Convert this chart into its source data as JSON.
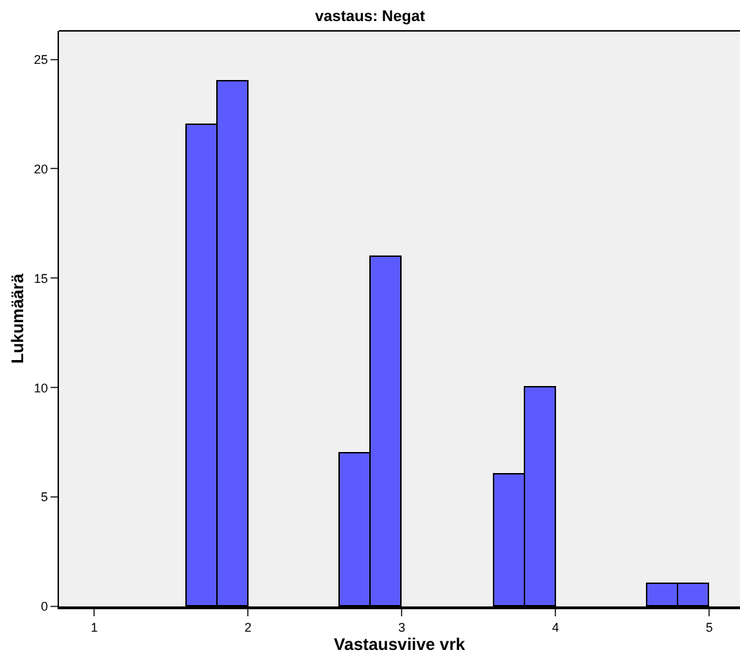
{
  "chart_data": {
    "type": "histogram",
    "title": "vastaus: Negat",
    "xlabel": "Vastausviive vrk",
    "ylabel": "Lukumäärä",
    "bins": [
      1.6,
      1.8,
      2.0,
      2.2,
      2.4,
      2.6,
      2.8,
      3.0,
      3.2,
      3.4,
      3.6,
      3.8,
      4.0,
      4.2,
      4.4,
      4.6,
      4.8,
      5.0
    ],
    "values": [
      22,
      24,
      0,
      0,
      0,
      7,
      16,
      0,
      0,
      0,
      6,
      10,
      0,
      0,
      0,
      1,
      1
    ],
    "color": "#5b5bff",
    "xlim": [
      0.77,
      5.2
    ],
    "xticks": [
      1,
      2,
      3,
      4,
      5
    ],
    "ylim": [
      0,
      26.3
    ],
    "yticks": [
      0,
      5,
      10,
      15,
      20,
      25
    ],
    "grid": false,
    "legend": false
  }
}
